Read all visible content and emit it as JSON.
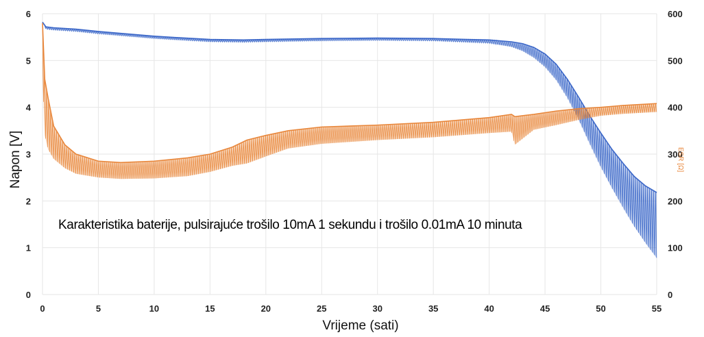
{
  "chart_data": {
    "type": "line",
    "title": "",
    "annotation": "Karakteristika baterije, pulsirajuće trošilo 10mA 1 sekundu i trošilo 0.01mA 10 minuta",
    "xlabel": "Vrijeme (sati)",
    "ylabel": "Napon [V]",
    "y2label": "ESR [Ω]",
    "xlim": [
      0,
      55
    ],
    "ylim": [
      0,
      6
    ],
    "y2lim": [
      0,
      600
    ],
    "x_ticks": [
      0,
      5,
      10,
      15,
      20,
      25,
      30,
      35,
      40,
      45,
      50,
      55
    ],
    "y_ticks": [
      0,
      1,
      2,
      3,
      4,
      5,
      6
    ],
    "y2_ticks": [
      0,
      100,
      200,
      300,
      400,
      500,
      600
    ],
    "grid": true,
    "legend": "none",
    "series": [
      {
        "axis": "left",
        "color": "#3a66c8",
        "x": [
          0,
          0.3,
          1,
          3,
          5,
          8,
          10,
          12,
          15,
          18,
          20,
          25,
          30,
          35,
          38,
          40,
          42,
          43,
          44,
          45,
          46,
          47,
          48,
          49,
          50,
          51,
          52,
          53,
          54,
          55
        ],
        "high": [
          5.82,
          5.72,
          5.7,
          5.67,
          5.62,
          5.56,
          5.52,
          5.49,
          5.45,
          5.44,
          5.45,
          5.47,
          5.48,
          5.47,
          5.45,
          5.44,
          5.4,
          5.36,
          5.28,
          5.14,
          4.92,
          4.6,
          4.22,
          3.82,
          3.45,
          3.1,
          2.8,
          2.52,
          2.32,
          2.18
        ],
        "low": [
          5.82,
          5.67,
          5.65,
          5.62,
          5.57,
          5.51,
          5.47,
          5.44,
          5.4,
          5.39,
          5.4,
          5.42,
          5.43,
          5.42,
          5.39,
          5.37,
          5.29,
          5.2,
          5.06,
          4.86,
          4.58,
          4.2,
          3.74,
          3.22,
          2.72,
          2.27,
          1.85,
          1.45,
          1.1,
          0.78
        ]
      },
      {
        "axis": "right",
        "color": "#e8863a",
        "x": [
          0,
          0.2,
          0.5,
          1,
          2,
          3,
          5,
          7,
          10,
          13,
          15,
          17,
          18.3,
          20,
          22,
          25,
          30,
          35,
          40,
          42,
          42.3,
          44,
          46,
          48,
          50,
          52,
          55
        ],
        "high": [
          580,
          460,
          420,
          360,
          320,
          300,
          285,
          282,
          285,
          292,
          300,
          315,
          330,
          340,
          350,
          358,
          362,
          368,
          378,
          385,
          380,
          385,
          392,
          397,
          400,
          404,
          408
        ],
        "low": [
          470,
          340,
          310,
          290,
          270,
          258,
          250,
          247,
          248,
          253,
          262,
          275,
          280,
          295,
          312,
          322,
          330,
          336,
          345,
          348,
          320,
          352,
          362,
          373,
          382,
          386,
          390
        ]
      }
    ]
  }
}
